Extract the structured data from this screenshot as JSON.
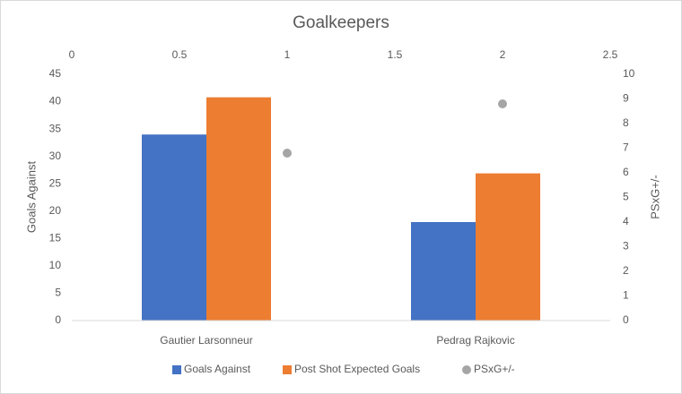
{
  "chart_data": {
    "type": "bar",
    "title": "Goalkeepers",
    "categories": [
      "Gautier Larsonneur",
      "Pedrag Rajkovic"
    ],
    "y_label": "Goals Against",
    "y2_label": "PSxG+/-",
    "series": [
      {
        "name": "Goals Against",
        "color": "#4472c4",
        "values": [
          34,
          18
        ]
      },
      {
        "name": "Post Shot Expected Goals",
        "color": "#ed7d31",
        "values": [
          40.8,
          26.9
        ]
      },
      {
        "name": "PSxG+/-",
        "type": "scatter",
        "axis": "y2",
        "color": "#a5a5a5",
        "x": [
          1,
          2
        ],
        "values": [
          6.8,
          8.8
        ]
      }
    ],
    "ylim": [
      0,
      45
    ],
    "yticks": [
      0,
      5,
      10,
      15,
      20,
      25,
      30,
      35,
      40,
      45
    ],
    "y2lim": [
      0,
      10
    ],
    "y2ticks": [
      0,
      1,
      2,
      3,
      4,
      5,
      6,
      7,
      8,
      9,
      10
    ],
    "x2lim": [
      0,
      2.5
    ],
    "x2ticks": [
      0,
      0.5,
      1,
      1.5,
      2,
      2.5
    ],
    "legend": "bottom"
  }
}
